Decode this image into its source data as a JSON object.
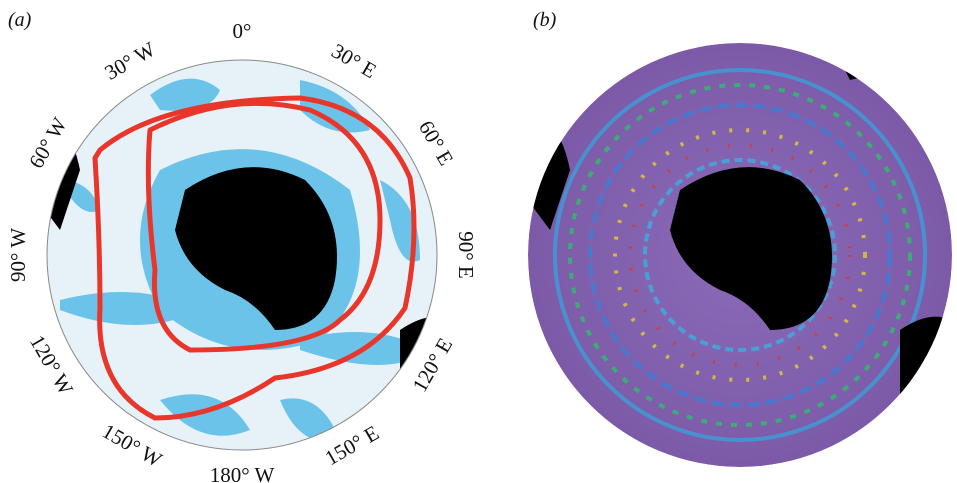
{
  "panels": [
    {
      "label": "(a)",
      "longitude_labels": [
        "0°",
        "30° E",
        "60° E",
        "90° E",
        "120° E",
        "150° E",
        "180° W",
        "150° W",
        "120° W",
        "90° W",
        "60° W",
        "30° W"
      ]
    },
    {
      "label": "(b)"
    }
  ]
}
